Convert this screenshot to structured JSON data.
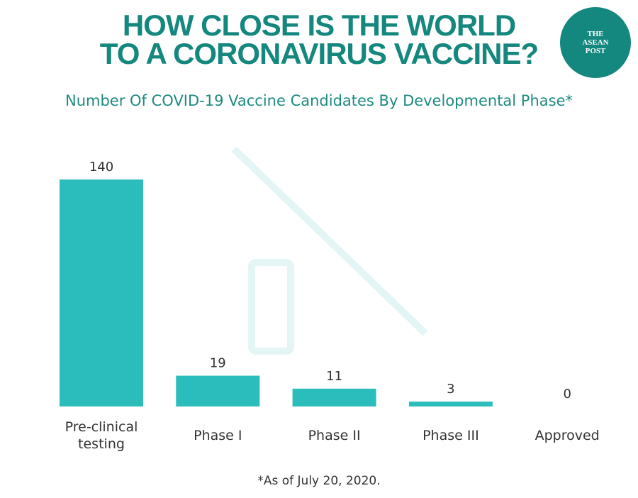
{
  "chart_data": {
    "type": "bar",
    "title": "HOW CLOSE IS THE WORLD\nTO A CORONAVIRUS VACCINE?",
    "subtitle": "Number Of COVID-19 Vaccine Candidates By Developmental Phase*",
    "categories": [
      "Pre-clinical\ntesting",
      "Phase I",
      "Phase II",
      "Phase III",
      "Approved"
    ],
    "values": [
      140,
      19,
      11,
      3,
      0
    ],
    "color": "#2bbdbb",
    "footnote": "*As of July 20, 2020.",
    "logo": "THE\nASEAN\nPOST"
  }
}
